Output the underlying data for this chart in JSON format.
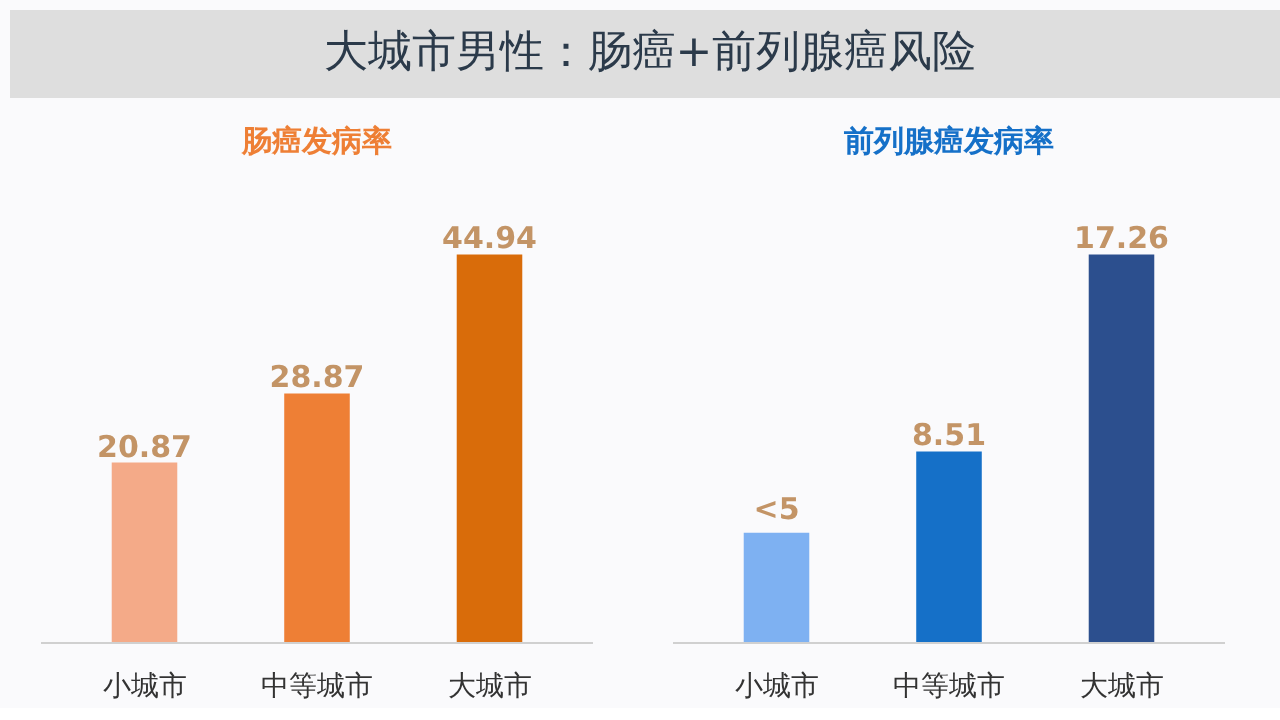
{
  "chart_data": [
    {
      "type": "bar",
      "title": "大城市男性：肠癌+前列腺癌风险",
      "subtitle": "肠癌发病率",
      "categories": [
        "小城市",
        "中等城市",
        "大城市"
      ],
      "values": [
        20.87,
        28.87,
        44.94
      ],
      "colors": [
        "#f4aa88",
        "#ee7f35",
        "#d96c0a"
      ],
      "data_labels": true
    },
    {
      "type": "bar",
      "subtitle": "前列腺癌发病率",
      "categories": [
        "小城市",
        "中等城市",
        "大城市"
      ],
      "values": [
        4.9,
        8.51,
        17.26
      ],
      "colors": [
        "#7eb1f2",
        "#1570c8",
        "#2c4f8e"
      ],
      "value_labels": [
        "<5",
        "8.51",
        "17.26"
      ]
    }
  ]
}
